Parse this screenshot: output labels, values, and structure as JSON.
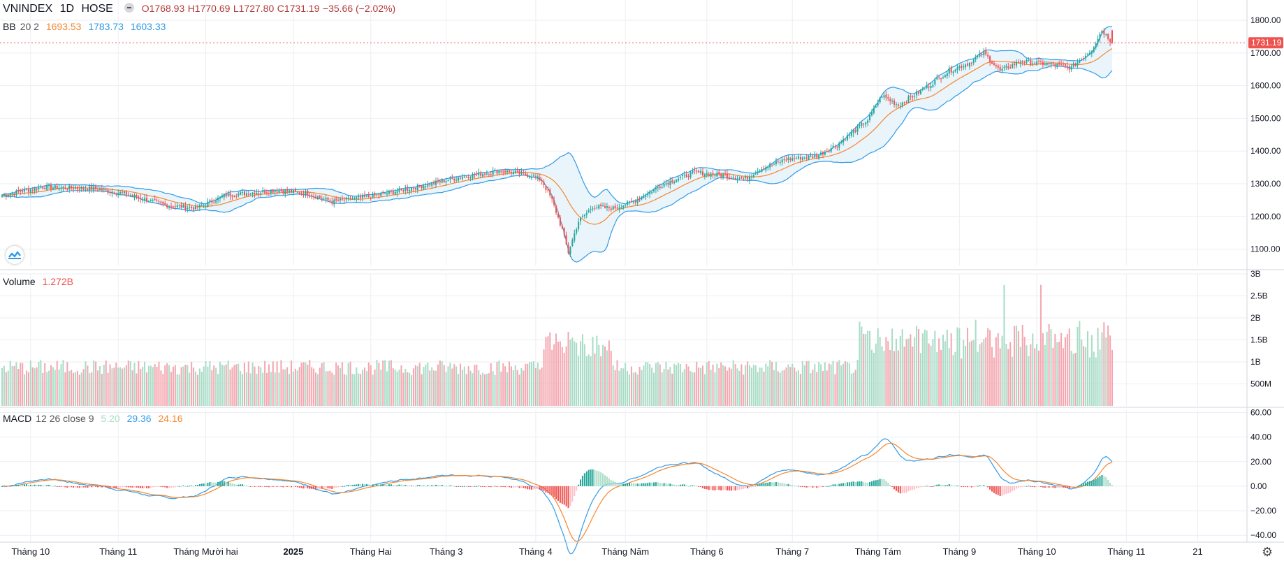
{
  "header": {
    "symbol": "VNINDEX",
    "interval": "1D",
    "exchange": "HOSE",
    "open": "O1768.93",
    "high": "H1770.69",
    "low": "L1727.80",
    "close": "C1731.19",
    "change": "−35.66 (−2.02%)"
  },
  "bb": {
    "name": "BB",
    "params": "20 2",
    "basis": "1693.53",
    "upper": "1783.73",
    "lower": "1603.33"
  },
  "volume_legend": {
    "name": "Volume",
    "value": "1.272B"
  },
  "macd_legend": {
    "name": "MACD",
    "params": "12 26 close 9",
    "hist": "5.20",
    "macd": "29.36",
    "signal": "24.16"
  },
  "price_tag": "1731.19",
  "colors": {
    "up": "#26a69a",
    "up_light": "#a9dcc7",
    "down": "#ef5350",
    "down_light": "#f4a7b0",
    "bb_basis": "#f7862c",
    "bb_band": "#2f9be8",
    "bb_fill": "#eaf4fb",
    "macd_line": "#2f9be8",
    "signal_line": "#f7862c",
    "hist_up": "#26a69a",
    "hist_up_light": "#a9dcc7",
    "hist_down": "#ef5350",
    "hist_down_light": "#fbc2c8",
    "grid": "#eceef2",
    "text": "#131722"
  },
  "icons": {
    "logo": "tradingview-logo-icon",
    "settings": "gear-icon"
  },
  "chart_data": [
    {
      "type": "candlestick",
      "title": "VNINDEX 1D HOSE",
      "ylim": [
        1050,
        1830
      ],
      "yticks": [
        "1100.00",
        "1200.00",
        "1300.00",
        "1400.00",
        "1500.00",
        "1600.00",
        "1700.00",
        "1800.00"
      ],
      "xticks": [
        "Tháng 10",
        "Tháng 11",
        "Tháng Mười hai",
        "2025",
        "Tháng Hai",
        "Tháng 3",
        "Tháng 4",
        "Tháng Năm",
        "Tháng 6",
        "Tháng 7",
        "Tháng Tám",
        "Tháng 9",
        "Tháng 10",
        "Tháng 11",
        "21"
      ],
      "approx_close_path": [
        [
          0,
          1265
        ],
        [
          20,
          1290
        ],
        [
          45,
          1285
        ],
        [
          60,
          1270
        ],
        [
          80,
          1235
        ],
        [
          95,
          1225
        ],
        [
          110,
          1265
        ],
        [
          135,
          1280
        ],
        [
          150,
          1270
        ],
        [
          162,
          1245
        ],
        [
          180,
          1260
        ],
        [
          200,
          1285
        ],
        [
          225,
          1320
        ],
        [
          245,
          1340
        ],
        [
          260,
          1325
        ],
        [
          265,
          1310
        ],
        [
          270,
          1250
        ],
        [
          275,
          1160
        ],
        [
          278,
          1090
        ],
        [
          283,
          1185
        ],
        [
          290,
          1230
        ],
        [
          300,
          1225
        ],
        [
          310,
          1245
        ],
        [
          325,
          1300
        ],
        [
          340,
          1335
        ],
        [
          355,
          1325
        ],
        [
          365,
          1315
        ],
        [
          372,
          1345
        ],
        [
          385,
          1375
        ],
        [
          400,
          1385
        ],
        [
          410,
          1420
        ],
        [
          425,
          1495
        ],
        [
          432,
          1570
        ],
        [
          440,
          1540
        ],
        [
          455,
          1600
        ],
        [
          465,
          1645
        ],
        [
          475,
          1670
        ],
        [
          482,
          1700
        ],
        [
          490,
          1645
        ],
        [
          500,
          1675
        ],
        [
          515,
          1665
        ],
        [
          525,
          1655
        ],
        [
          535,
          1710
        ],
        [
          540,
          1770
        ],
        [
          545,
          1731.19
        ]
      ],
      "last_bar": {
        "open": 1768.93,
        "high": 1770.69,
        "low": 1727.8,
        "close": 1731.19
      }
    },
    {
      "type": "bar",
      "title": "Volume",
      "yticks": [
        "500M",
        "1B",
        "1.5B",
        "2B",
        "2.5B",
        "3B"
      ],
      "ylim": [
        0,
        3
      ],
      "unit": "B",
      "last_value": 1.272
    },
    {
      "type": "macd",
      "title": "MACD 12 26 close 9",
      "yticks": [
        "−40.00",
        "−20.00",
        "0.00",
        "20.00",
        "40.00",
        "60.00"
      ],
      "ylim": [
        -45,
        62
      ],
      "last": {
        "histogram": 5.2,
        "macd": 29.36,
        "signal": 24.16
      }
    }
  ]
}
